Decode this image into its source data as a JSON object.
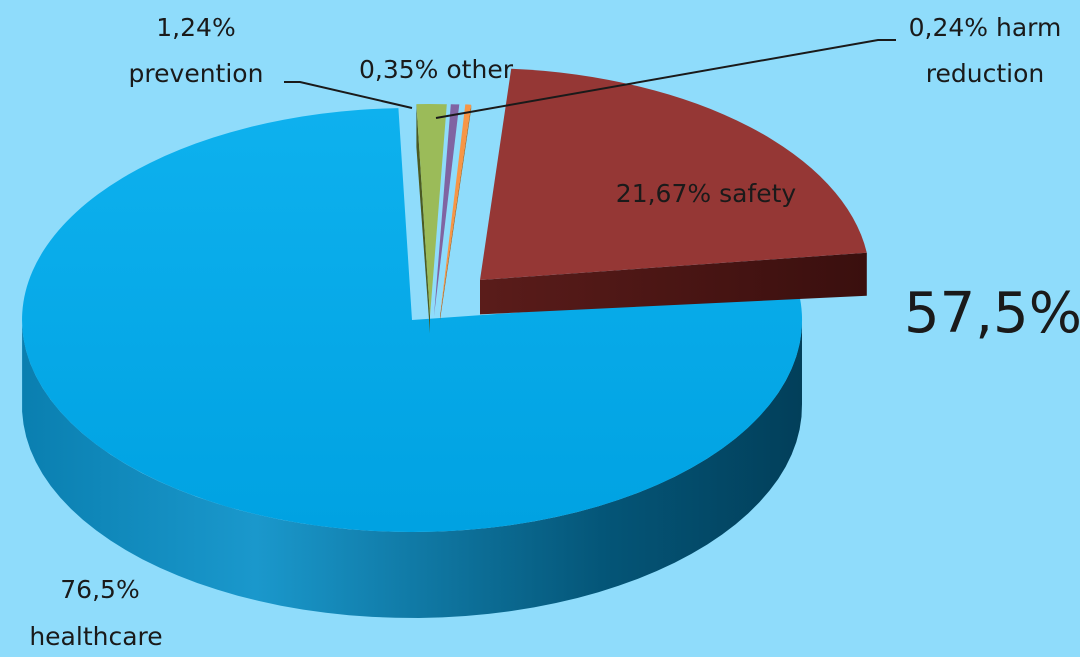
{
  "chart_data": {
    "type": "pie",
    "style": "3d-exploded",
    "slices": [
      {
        "name": "healthcare",
        "value": 76.5,
        "label": "76,5%",
        "label_line2": "healthcare",
        "color": "#00a8e8"
      },
      {
        "name": "prevention",
        "value": 1.24,
        "label": "1,24%",
        "label_line2": "prevention",
        "color": "#9bbb59"
      },
      {
        "name": "other",
        "value": 0.35,
        "label": "0,35% other",
        "label_line2": "",
        "color": "#8064a2"
      },
      {
        "name": "harm reduction",
        "value": 0.24,
        "label": "0,24% harm",
        "label_line2": "reduction",
        "color": "#f79646"
      },
      {
        "name": "safety",
        "value": 21.67,
        "label": "21,67% safety",
        "label_line2": "",
        "color": "#953735"
      }
    ],
    "annotation": "57,5%"
  }
}
